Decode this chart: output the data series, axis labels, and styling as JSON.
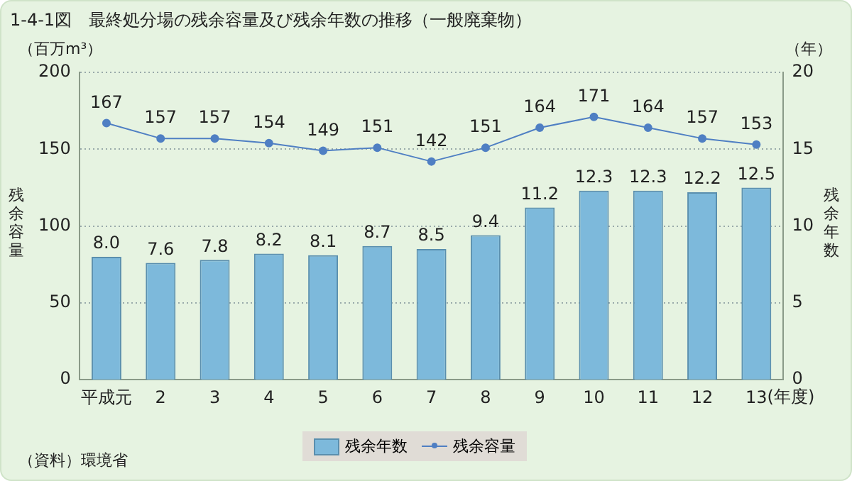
{
  "chart_data": {
    "type": "bar",
    "title": "1-4-1図　最終処分場の残余容量及び残余年数の推移（一般廃棄物）",
    "xlabel": "(年度)",
    "ylabel": "残余容量",
    "y2label": "残余年数",
    "annotations": [
      "（百万m³）",
      "（年）",
      "（資料）環境省"
    ],
    "categories": [
      "平成元",
      "2",
      "3",
      "4",
      "5",
      "6",
      "7",
      "8",
      "9",
      "10",
      "11",
      "12",
      "13"
    ],
    "series": [
      {
        "name": "残余年数",
        "axis": "y2",
        "color": "#7db9db",
        "values": [
          8.0,
          7.6,
          7.8,
          8.2,
          8.1,
          8.7,
          8.5,
          9.4,
          11.2,
          12.3,
          12.3,
          12.2,
          12.5
        ],
        "value_labels": [
          "8.0",
          "7.6",
          "7.8",
          "8.2",
          "8.1",
          "8.7",
          "8.5",
          "9.4",
          "11.2",
          "12.3",
          "12.3",
          "12.2",
          "12.5"
        ]
      },
      {
        "name": "残余容量",
        "type": "line",
        "axis": "y",
        "color": "#4f7fc3",
        "values": [
          167,
          157,
          157,
          154,
          149,
          151,
          142,
          151,
          164,
          171,
          164,
          157,
          153
        ],
        "value_labels": [
          "167",
          "157",
          "157",
          "154",
          "149",
          "151",
          "142",
          "151",
          "164",
          "171",
          "164",
          "157",
          "153"
        ]
      }
    ],
    "ylim": [
      0,
      200
    ],
    "yticks": [
      0,
      50,
      100,
      150,
      200
    ],
    "y2lim": [
      0,
      20
    ],
    "y2ticks": [
      0,
      5,
      10,
      15,
      20
    ],
    "grid": "y",
    "legend": "bottom",
    "marker": "circle",
    "line_style": "solid"
  }
}
